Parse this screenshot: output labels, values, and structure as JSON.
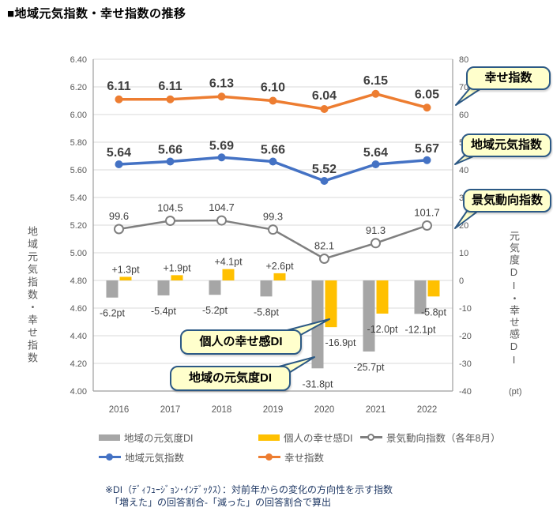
{
  "page": {
    "title": "■地域元気指数・幸せ指数の推移"
  },
  "chart_data": {
    "type": "combo",
    "categories": [
      "2016",
      "2017",
      "2018",
      "2019",
      "2020",
      "2021",
      "2022"
    ],
    "series": [
      {
        "name": "地域の元気度DI",
        "type": "bar",
        "axis": "right",
        "color": "#A6A6A6",
        "values": [
          -6.2,
          -5.4,
          -5.2,
          -5.8,
          -31.8,
          -25.7,
          -12.1
        ],
        "labels": [
          "-6.2pt",
          "-5.4pt",
          "-5.2pt",
          "-5.8pt",
          "-31.8pt",
          "-25.7pt",
          "-12.1pt"
        ]
      },
      {
        "name": "個人の幸せ感DI",
        "type": "bar",
        "axis": "right",
        "color": "#FFC000",
        "values": [
          1.3,
          1.9,
          4.1,
          2.6,
          -16.9,
          -12.0,
          -5.8
        ],
        "labels": [
          "+1.3pt",
          "+1.9pt",
          "+4.1pt",
          "+2.6pt",
          "-16.9pt",
          "-12.0pt",
          "-5.8pt"
        ]
      },
      {
        "name": "景気動向指数（各年8月）",
        "type": "line",
        "axis": "hidden",
        "color": "#7F7F7F",
        "marker": "open-circle",
        "values": [
          99.6,
          104.5,
          104.7,
          99.3,
          82.1,
          91.3,
          101.7
        ],
        "labels": [
          "99.6",
          "104.5",
          "104.7",
          "99.3",
          "82.1",
          "91.3",
          "101.7"
        ]
      },
      {
        "name": "地域元気指数",
        "type": "line",
        "axis": "left",
        "color": "#4472C4",
        "marker": "circle",
        "values": [
          5.64,
          5.66,
          5.69,
          5.66,
          5.52,
          5.64,
          5.67
        ],
        "labels": [
          "5.64",
          "5.66",
          "5.69",
          "5.66",
          "5.52",
          "5.64",
          "5.67"
        ]
      },
      {
        "name": "幸せ指数",
        "type": "line",
        "axis": "left",
        "color": "#ED7D31",
        "marker": "circle",
        "values": [
          6.11,
          6.11,
          6.13,
          6.1,
          6.04,
          6.15,
          6.05
        ],
        "labels": [
          "6.11",
          "6.11",
          "6.13",
          "6.10",
          "6.04",
          "6.15",
          "6.05"
        ]
      }
    ],
    "left_axis": {
      "title": "地域元気指数・幸せ指数",
      "min": 4.0,
      "max": 6.4,
      "step": 0.2,
      "ticks": [
        "6.40",
        "6.20",
        "6.00",
        "5.80",
        "5.60",
        "5.40",
        "5.20",
        "5.00",
        "4.80",
        "4.60",
        "4.40",
        "4.20",
        "4.00"
      ]
    },
    "right_axis": {
      "title": "元気度DI・幸せ感DI",
      "unit": "(pt)",
      "min": -40,
      "max": 80,
      "step": 10,
      "ticks": [
        "80",
        "70",
        "60",
        "50",
        "40",
        "30",
        "20",
        "10",
        "0",
        "-10",
        "-20",
        "-30",
        "-40"
      ]
    },
    "grid": true,
    "legend_position": "bottom"
  },
  "callouts": [
    {
      "label": "幸せ指数"
    },
    {
      "label": "地域元気指数"
    },
    {
      "label": "景気動向指数"
    },
    {
      "label": "個人の幸せ感DI"
    },
    {
      "label": "地域の元気度DI"
    }
  ],
  "legend": {
    "items": [
      {
        "label": "地域の元気度DI",
        "swatch": "gray-bar"
      },
      {
        "label": "個人の幸せ感DI",
        "swatch": "yellow-bar"
      },
      {
        "label": "景気動向指数（各年8月）",
        "swatch": "keiki-line"
      },
      {
        "label": "地域元気指数",
        "swatch": "blue-line"
      },
      {
        "label": "幸せ指数",
        "swatch": "orange-line"
      }
    ]
  },
  "footnote": {
    "line1": "※DI（ﾃﾞｨﾌｭｰｼﾞｮﾝ･ｲﾝﾃﾞｯｸｽ）：対前年からの変化の方向性を示す指数",
    "line2": "「増えた」の回答割合-「減った」の回答割合で算出"
  },
  "colors": {
    "orange_line": "#ED7D31",
    "blue_line": "#4472C4",
    "keiki_line": "#7F7F7F",
    "gray_bar": "#A6A6A6",
    "yellow_bar": "#FFC000",
    "grid": "#D9D9D9",
    "axis": "#9E9E9E",
    "tick_text": "#595959",
    "value_text": "#3F3F3F",
    "callout_fill": "#FFFFCC",
    "callout_border": "#2C5985",
    "footnote_text": "#1F3864"
  }
}
